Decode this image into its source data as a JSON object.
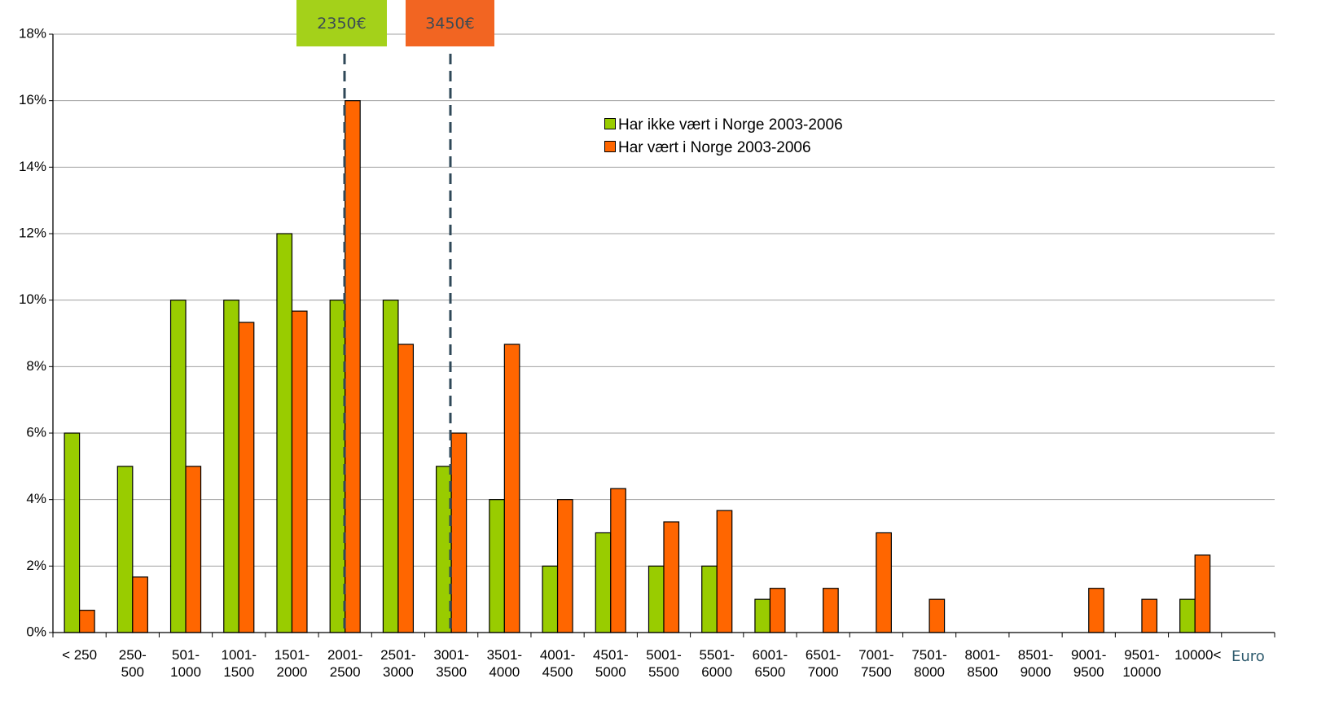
{
  "chart_data": {
    "type": "bar",
    "categories": [
      "< 250",
      "250-500",
      "501-1000",
      "1001-1500",
      "1501-2000",
      "2001-2500",
      "2501-3000",
      "3001-3500",
      "3501-4000",
      "4001-4500",
      "4501-5000",
      "5001-5500",
      "5501-6000",
      "6001-6500",
      "6501-7000",
      "7001-7500",
      "7501-8000",
      "8001-8500",
      "8501-9000",
      "9001-9500",
      "9501-10000",
      "10000<",
      null
    ],
    "series": [
      {
        "name": "Har ikke vært i Norge 2003-2006",
        "color": "#99cc00",
        "values": [
          6,
          5,
          10,
          10,
          12,
          10,
          10,
          5,
          4,
          2,
          3,
          2,
          2,
          1,
          0,
          0,
          0,
          0,
          0,
          0,
          0,
          1,
          null
        ]
      },
      {
        "name": "Har vært i Norge 2003-2006",
        "color": "#ff6600",
        "values": [
          0.67,
          1.67,
          5,
          9.33,
          9.67,
          16,
          8.67,
          6,
          8.67,
          4,
          4.33,
          3.33,
          3.67,
          1.33,
          1.33,
          3,
          1,
          0,
          0,
          1.33,
          1,
          2.33,
          null
        ]
      }
    ],
    "ylim": [
      0,
      18
    ],
    "yticks": [
      {
        "value": 0,
        "label": "0%"
      },
      {
        "value": 2,
        "label": "2%"
      },
      {
        "value": 4,
        "label": "4%"
      },
      {
        "value": 6,
        "label": "6%"
      },
      {
        "value": 8,
        "label": "8%"
      },
      {
        "value": 10,
        "label": "10%"
      },
      {
        "value": 12,
        "label": "12%"
      },
      {
        "value": 14,
        "label": "14%"
      },
      {
        "value": 16,
        "label": "16%"
      },
      {
        "value": 18,
        "label": "18%"
      }
    ],
    "grid": true,
    "x_label": "Euro",
    "annotations": [
      {
        "text": "2350€",
        "color": "#a4d11a"
      },
      {
        "text": "3450€",
        "color": "#f26522"
      }
    ]
  }
}
